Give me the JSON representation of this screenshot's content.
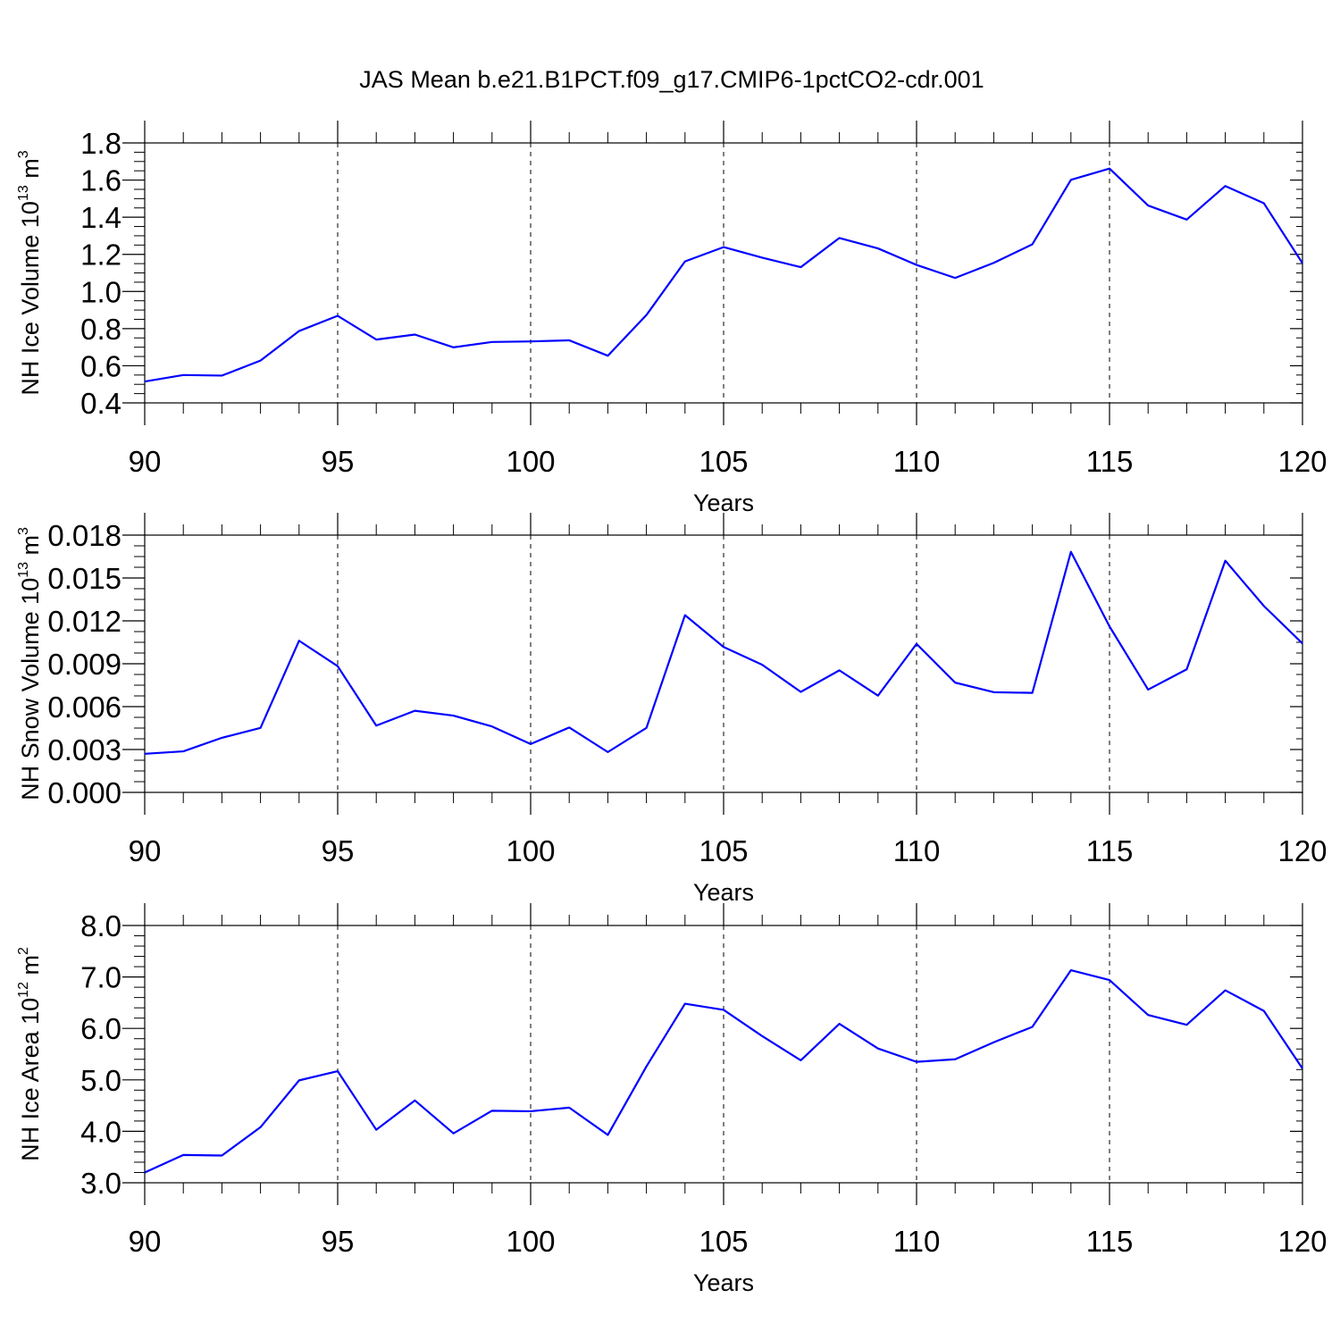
{
  "title": "JAS Mean b.e21.B1PCT.f09_g17.CMIP6-1pctCO2-cdr.001",
  "colors": {
    "series": "#0000ff",
    "axes": "#000000",
    "grid": "#000000",
    "background": "#ffffff"
  },
  "chart_data": [
    {
      "type": "line",
      "name": "ice-volume",
      "xlabel": "Years",
      "ylabel_parts": [
        "NH Ice Volume 10",
        "13",
        " m",
        "3"
      ],
      "xlim": [
        90,
        120
      ],
      "ylim": [
        0.4,
        1.8
      ],
      "xticks": [
        90,
        95,
        100,
        105,
        110,
        115,
        120
      ],
      "xtick_labels": [
        "90",
        "95",
        "100",
        "105",
        "110",
        "115",
        "120"
      ],
      "yticks": [
        0.4,
        0.6,
        0.8,
        1.0,
        1.2,
        1.4,
        1.6,
        1.8
      ],
      "ytick_labels": [
        "0.4",
        "0.6",
        "0.8",
        "1.0",
        "1.2",
        "1.4",
        "1.6",
        "1.8"
      ],
      "x_minor_step": 1,
      "y_minor_step": 0.05,
      "vgrid": [
        95,
        100,
        105,
        110,
        115
      ],
      "series": [
        {
          "name": "NH Ice Volume",
          "x": [
            90,
            91,
            92,
            93,
            94,
            95,
            96,
            97,
            98,
            99,
            100,
            101,
            102,
            103,
            104,
            105,
            106,
            107,
            108,
            109,
            110,
            111,
            112,
            113,
            114,
            115,
            116,
            117,
            118,
            119,
            120
          ],
          "values": [
            0.515,
            0.55,
            0.547,
            0.628,
            0.787,
            0.869,
            0.741,
            0.768,
            0.699,
            0.728,
            0.731,
            0.737,
            0.654,
            0.873,
            1.162,
            1.239,
            1.182,
            1.131,
            1.288,
            1.232,
            1.143,
            1.073,
            1.154,
            1.254,
            1.601,
            1.662,
            1.463,
            1.387,
            1.568,
            1.475,
            1.152
          ]
        }
      ]
    },
    {
      "type": "line",
      "name": "snow-volume",
      "xlabel": "Years",
      "ylabel_parts": [
        "NH Snow Volume 10",
        "13",
        " m",
        "3"
      ],
      "xlim": [
        90,
        120
      ],
      "ylim": [
        0.0,
        0.018
      ],
      "xticks": [
        90,
        95,
        100,
        105,
        110,
        115,
        120
      ],
      "xtick_labels": [
        "90",
        "95",
        "100",
        "105",
        "110",
        "115",
        "120"
      ],
      "yticks": [
        0.0,
        0.003,
        0.006,
        0.009,
        0.012,
        0.015,
        0.018
      ],
      "ytick_labels": [
        "0.000",
        "0.003",
        "0.006",
        "0.009",
        "0.012",
        "0.015",
        "0.018"
      ],
      "x_minor_step": 1,
      "y_minor_step": 0.00075,
      "vgrid": [
        95,
        100,
        105,
        110,
        115
      ],
      "series": [
        {
          "name": "NH Snow Volume",
          "x": [
            90,
            91,
            92,
            93,
            94,
            95,
            96,
            97,
            98,
            99,
            100,
            101,
            102,
            103,
            104,
            105,
            106,
            107,
            108,
            109,
            110,
            111,
            112,
            113,
            114,
            115,
            116,
            117,
            118,
            119,
            120
          ],
          "values": [
            0.0027,
            0.00287,
            0.00382,
            0.00451,
            0.01061,
            0.00883,
            0.00467,
            0.00571,
            0.00537,
            0.00461,
            0.00338,
            0.00454,
            0.00282,
            0.00451,
            0.0124,
            0.01017,
            0.00893,
            0.00703,
            0.00854,
            0.00677,
            0.01039,
            0.00768,
            0.00701,
            0.00696,
            0.01683,
            0.01161,
            0.00719,
            0.00861,
            0.01621,
            0.01304,
            0.01042
          ]
        }
      ]
    },
    {
      "type": "line",
      "name": "ice-area",
      "xlabel": "Years",
      "ylabel_parts": [
        "NH Ice Area 10",
        "12",
        " m",
        "2"
      ],
      "xlim": [
        90,
        120
      ],
      "ylim": [
        3.0,
        8.0
      ],
      "xticks": [
        90,
        95,
        100,
        105,
        110,
        115,
        120
      ],
      "xtick_labels": [
        "90",
        "95",
        "100",
        "105",
        "110",
        "115",
        "120"
      ],
      "yticks": [
        3.0,
        4.0,
        5.0,
        6.0,
        7.0,
        8.0
      ],
      "ytick_labels": [
        "3.0",
        "4.0",
        "5.0",
        "6.0",
        "7.0",
        "8.0"
      ],
      "x_minor_step": 1,
      "y_minor_step": 0.2,
      "vgrid": [
        95,
        100,
        105,
        110,
        115
      ],
      "series": [
        {
          "name": "NH Ice Area",
          "x": [
            90,
            91,
            92,
            93,
            94,
            95,
            96,
            97,
            98,
            99,
            100,
            101,
            102,
            103,
            104,
            105,
            106,
            107,
            108,
            109,
            110,
            111,
            112,
            113,
            114,
            115,
            116,
            117,
            118,
            119,
            120
          ],
          "values": [
            3.2,
            3.54,
            3.53,
            4.08,
            4.99,
            5.17,
            4.03,
            4.6,
            3.96,
            4.4,
            4.39,
            4.46,
            3.93,
            5.26,
            6.48,
            6.36,
            5.85,
            5.38,
            6.09,
            5.61,
            5.35,
            5.4,
            5.73,
            6.03,
            7.13,
            6.94,
            6.26,
            6.07,
            6.74,
            6.34,
            5.22
          ]
        }
      ]
    }
  ]
}
